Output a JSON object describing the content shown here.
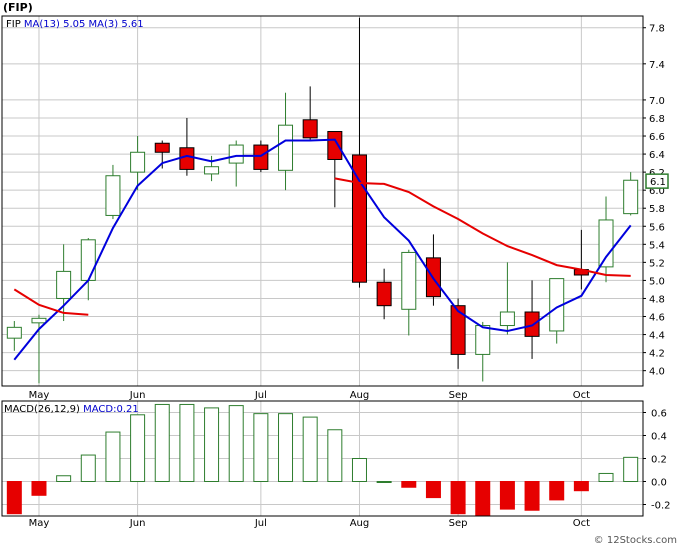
{
  "page_title": "(FIP)",
  "footer": "© 12Stocks.com",
  "colors": {
    "frame": "#000000",
    "grid": "#c8c8c8",
    "up_candle": "#2e7d2e",
    "down_candle": "#e60000",
    "ma_fast": "#0000dd",
    "ma_slow": "#e60000",
    "macd_pos": "#2e7d2e",
    "macd_neg": "#e60000",
    "legend_text": "#0000cc",
    "last_price_box": "#2e7d2e"
  },
  "chart_data": [
    {
      "type": "candlestick",
      "title": "(FIP)",
      "legend": [
        {
          "label": "FIP",
          "color": "#000000"
        },
        {
          "label": "MA(13)",
          "value": "5.05",
          "color": "#0000cc"
        },
        {
          "label": "MA(3)",
          "value": "5.61",
          "color": "#0000cc"
        }
      ],
      "ylim": [
        3.83,
        7.93
      ],
      "y_ticks": [
        {
          "v": 4.0,
          "label": "4.0"
        },
        {
          "v": 4.2,
          "label": "4.2"
        },
        {
          "v": 4.4,
          "label": "4.4"
        },
        {
          "v": 4.6,
          "label": "4.6"
        },
        {
          "v": 4.8,
          "label": "4.8"
        },
        {
          "v": 5.0,
          "label": "5.0"
        },
        {
          "v": 5.2,
          "label": "5.2"
        },
        {
          "v": 5.4,
          "label": "5.4"
        },
        {
          "v": 5.6,
          "label": "5.6"
        },
        {
          "v": 5.8,
          "label": "5.8"
        },
        {
          "v": 6.0,
          "label": "6.0"
        },
        {
          "v": 6.2,
          "label": "6.2"
        },
        {
          "v": 6.4,
          "label": "6.4"
        },
        {
          "v": 6.6,
          "label": "6.6"
        },
        {
          "v": 6.8,
          "label": "6.8"
        },
        {
          "v": 7.0,
          "label": "7.0"
        },
        {
          "v": 7.4,
          "label": "7.4"
        },
        {
          "v": 7.8,
          "label": "7.8"
        }
      ],
      "x_count": 26,
      "x_ticks": [
        {
          "i": 1,
          "label": "May"
        },
        {
          "i": 5,
          "label": "Jun"
        },
        {
          "i": 10,
          "label": "Jul"
        },
        {
          "i": 14,
          "label": "Aug"
        },
        {
          "i": 18,
          "label": "Sep"
        },
        {
          "i": 23,
          "label": "Oct"
        }
      ],
      "last_price_label": "6.1",
      "last_price": 6.1,
      "candles": [
        {
          "o": 4.36,
          "h": 4.55,
          "l": 4.22,
          "c": 4.48
        },
        {
          "o": 4.53,
          "h": 4.62,
          "l": 3.86,
          "c": 4.58
        },
        {
          "o": 4.8,
          "h": 5.4,
          "l": 4.55,
          "c": 5.1
        },
        {
          "o": 5.0,
          "h": 5.47,
          "l": 4.78,
          "c": 5.45
        },
        {
          "o": 5.72,
          "h": 6.28,
          "l": 5.68,
          "c": 6.16
        },
        {
          "o": 6.2,
          "h": 6.6,
          "l": 6.0,
          "c": 6.42
        },
        {
          "o": 6.52,
          "h": 6.55,
          "l": 6.24,
          "c": 6.42
        },
        {
          "o": 6.47,
          "h": 6.8,
          "l": 6.16,
          "c": 6.23
        },
        {
          "o": 6.18,
          "h": 6.38,
          "l": 6.1,
          "c": 6.26
        },
        {
          "o": 6.3,
          "h": 6.55,
          "l": 6.04,
          "c": 6.5
        },
        {
          "o": 6.5,
          "h": 6.55,
          "l": 6.2,
          "c": 6.23
        },
        {
          "o": 6.22,
          "h": 7.08,
          "l": 6.0,
          "c": 6.72
        },
        {
          "o": 6.78,
          "h": 7.15,
          "l": 6.56,
          "c": 6.58
        },
        {
          "o": 6.65,
          "h": 6.65,
          "l": 5.81,
          "c": 6.34
        },
        {
          "o": 6.39,
          "h": 7.91,
          "l": 4.92,
          "c": 4.98
        },
        {
          "o": 4.98,
          "h": 5.13,
          "l": 4.57,
          "c": 4.72
        },
        {
          "o": 4.68,
          "h": 5.34,
          "l": 4.39,
          "c": 5.31
        },
        {
          "o": 5.25,
          "h": 5.51,
          "l": 4.72,
          "c": 4.82
        },
        {
          "o": 4.72,
          "h": 4.8,
          "l": 4.02,
          "c": 4.18
        },
        {
          "o": 4.18,
          "h": 4.54,
          "l": 3.88,
          "c": 4.5
        },
        {
          "o": 4.5,
          "h": 5.2,
          "l": 4.4,
          "c": 4.65
        },
        {
          "o": 4.65,
          "h": 5.0,
          "l": 4.13,
          "c": 4.38
        },
        {
          "o": 4.44,
          "h": 5.02,
          "l": 4.3,
          "c": 5.02
        },
        {
          "o": 5.12,
          "h": 5.56,
          "l": 4.9,
          "c": 5.06
        },
        {
          "o": 5.15,
          "h": 5.93,
          "l": 4.98,
          "c": 5.67
        },
        {
          "o": 5.74,
          "h": 6.2,
          "l": 5.72,
          "c": 6.11
        }
      ],
      "series": [
        {
          "name": "MA(3)",
          "color": "#0000dd",
          "values": [
            4.12,
            4.46,
            4.72,
            5.0,
            5.58,
            6.05,
            6.3,
            6.38,
            6.32,
            6.38,
            6.38,
            6.55,
            6.55,
            6.56,
            6.1,
            5.7,
            5.44,
            5.02,
            4.66,
            4.48,
            4.44,
            4.5,
            4.7,
            4.83,
            5.26,
            5.61
          ]
        },
        {
          "name": "MA(13)",
          "color": "#e60000",
          "values": [
            4.9,
            4.73,
            4.64,
            4.62,
            null,
            null,
            null,
            null,
            null,
            null,
            null,
            null,
            null,
            6.13,
            6.08,
            6.07,
            5.98,
            5.82,
            5.68,
            5.52,
            5.38,
            5.28,
            5.17,
            5.12,
            5.06,
            5.05
          ]
        }
      ]
    },
    {
      "type": "bar",
      "title": "MACD(26,12,9)",
      "legend": [
        {
          "label": "MACD(26,12,9)",
          "color": "#000000"
        },
        {
          "label": "MACD:0.21",
          "color": "#0000cc"
        }
      ],
      "ylim": [
        -0.3,
        0.7
      ],
      "y_ticks": [
        {
          "v": 0.6,
          "label": "0.6"
        },
        {
          "v": 0.4,
          "label": "0.4"
        },
        {
          "v": 0.2,
          "label": "0.2"
        },
        {
          "v": 0.0,
          "label": "0.0"
        },
        {
          "v": -0.2,
          "label": "-0.2"
        }
      ],
      "values": [
        -0.28,
        -0.12,
        0.05,
        0.23,
        0.43,
        0.58,
        0.67,
        0.67,
        0.64,
        0.66,
        0.59,
        0.59,
        0.56,
        0.45,
        0.2,
        0.0,
        -0.05,
        -0.14,
        -0.28,
        -0.3,
        -0.24,
        -0.25,
        -0.16,
        -0.08,
        0.07,
        0.21
      ]
    }
  ]
}
